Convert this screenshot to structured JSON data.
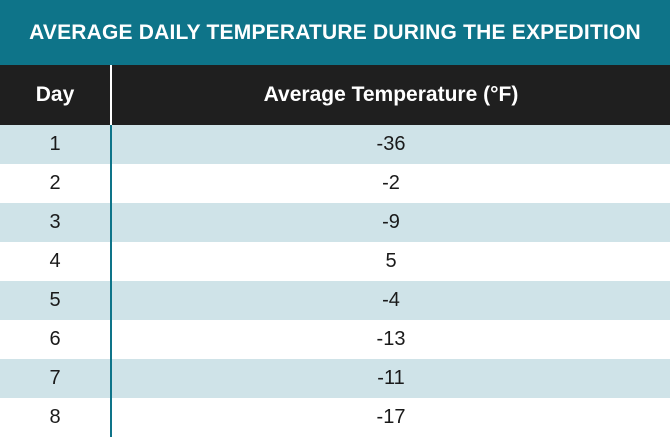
{
  "chart_data": {
    "type": "table",
    "title": "AVERAGE DAILY TEMPERATURE DURING THE EXPEDITION",
    "columns": [
      "Day",
      "Average Temperature (°F)"
    ],
    "rows": [
      [
        "1",
        "-36"
      ],
      [
        "2",
        "-2"
      ],
      [
        "3",
        "-9"
      ],
      [
        "4",
        "5"
      ],
      [
        "5",
        "-4"
      ],
      [
        "6",
        "-13"
      ],
      [
        "7",
        "-11"
      ],
      [
        "8",
        "-17"
      ]
    ]
  },
  "colors": {
    "title_bg": "#0e7489",
    "header_bg": "#1f1f1f",
    "row_shaded": "#cfe3e8",
    "row_plain": "#ffffff",
    "divider": "#0e7489"
  }
}
